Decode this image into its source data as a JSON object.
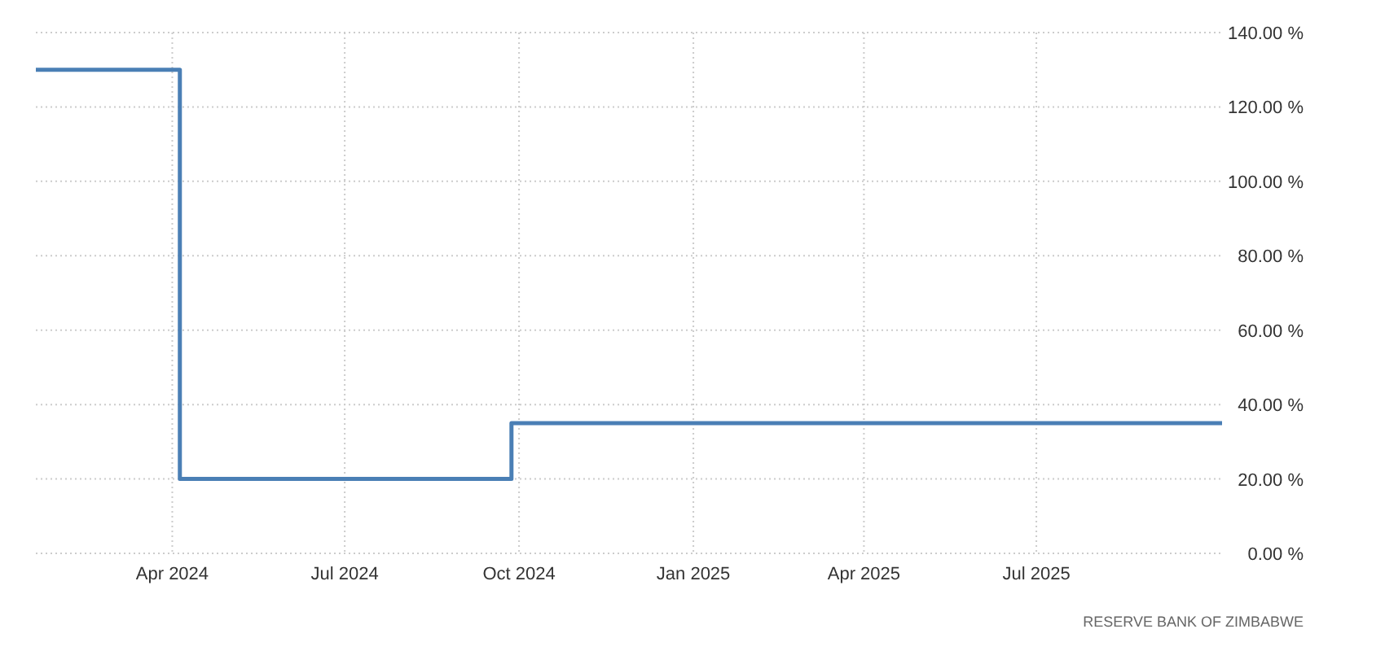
{
  "chart_data": {
    "type": "step",
    "x": [
      "2024-01-20",
      "2024-04-05",
      "2024-09-27",
      "2025-10-07"
    ],
    "series": [
      {
        "color": "#4a7fb5",
        "values": [
          130,
          20,
          35,
          35
        ]
      }
    ],
    "xlim": [
      "2024-01-20",
      "2025-10-07"
    ],
    "xticks": [
      {
        "value": "2024-04-01",
        "label": "Apr 2024"
      },
      {
        "value": "2024-07-01",
        "label": "Jul 2024"
      },
      {
        "value": "2024-10-01",
        "label": "Oct 2024"
      },
      {
        "value": "2025-01-01",
        "label": "Jan 2025"
      },
      {
        "value": "2025-04-01",
        "label": "Apr 2025"
      },
      {
        "value": "2025-07-01",
        "label": "Jul 2025"
      }
    ],
    "ylim": [
      0,
      140
    ],
    "yticks": [
      {
        "value": 0,
        "label": "0.00 %"
      },
      {
        "value": 20,
        "label": "20.00 %"
      },
      {
        "value": 40,
        "label": "40.00 %"
      },
      {
        "value": 60,
        "label": "60.00 %"
      },
      {
        "value": 80,
        "label": "80.00 %"
      },
      {
        "value": 100,
        "label": "100.00 %"
      },
      {
        "value": 120,
        "label": "120.00 %"
      },
      {
        "value": 140,
        "label": "140.00 %"
      }
    ],
    "grid": true,
    "annotations": [
      "RESERVE BANK OF ZIMBABWE"
    ]
  }
}
